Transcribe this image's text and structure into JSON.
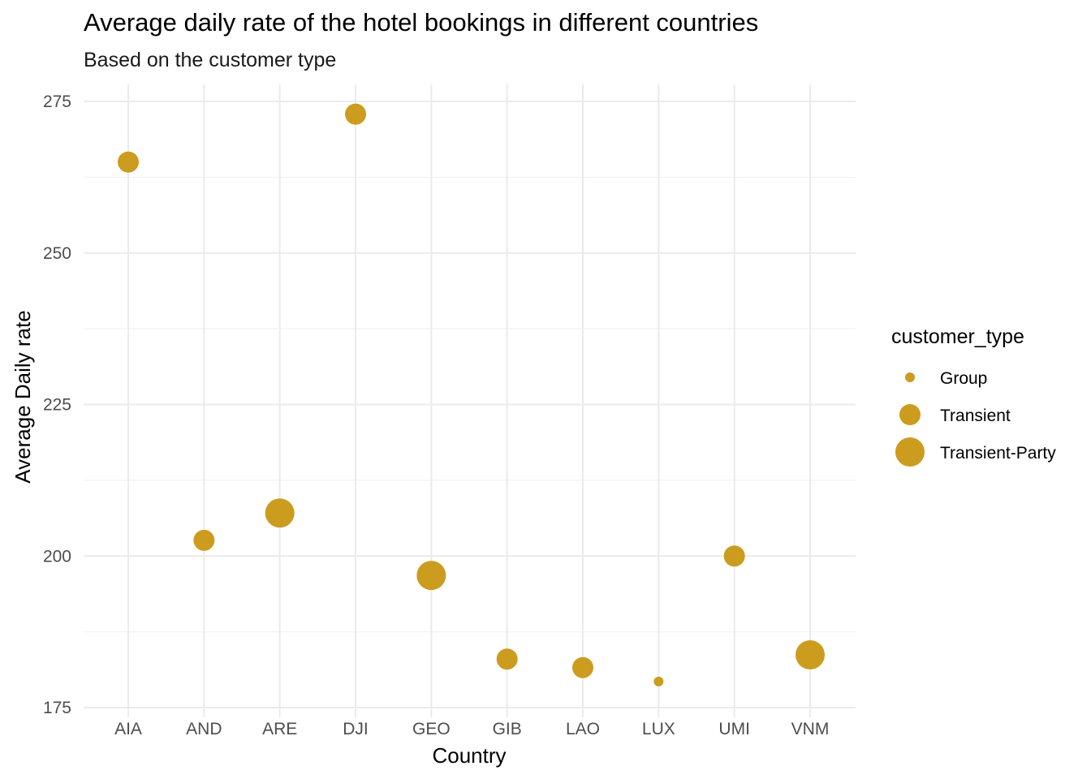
{
  "chart_data": {
    "type": "scatter",
    "title": "Average daily rate of the hotel bookings in different countries",
    "subtitle": "Based on the customer type",
    "xlabel": "Country",
    "ylabel": "Average Daily rate",
    "categories": [
      "AIA",
      "AND",
      "ARE",
      "DJI",
      "GEO",
      "GIB",
      "LAO",
      "LUX",
      "UMI",
      "VNM"
    ],
    "ylim": [
      175,
      277
    ],
    "yticks": [
      175,
      200,
      225,
      250,
      275
    ],
    "grid": true,
    "point_color": "#CC9C1F",
    "legend": {
      "title": "customer_type",
      "position": "right",
      "entries": [
        "Group",
        "Transient",
        "Transient-Party"
      ]
    },
    "points": [
      {
        "x": "AIA",
        "y": 265.0,
        "customer_type": "Transient"
      },
      {
        "x": "AND",
        "y": 202.6,
        "customer_type": "Transient"
      },
      {
        "x": "ARE",
        "y": 207.1,
        "customer_type": "Transient-Party"
      },
      {
        "x": "DJI",
        "y": 272.9,
        "customer_type": "Transient"
      },
      {
        "x": "GEO",
        "y": 196.8,
        "customer_type": "Transient-Party"
      },
      {
        "x": "GIB",
        "y": 183.0,
        "customer_type": "Transient"
      },
      {
        "x": "LAO",
        "y": 181.6,
        "customer_type": "Transient"
      },
      {
        "x": "LUX",
        "y": 179.3,
        "customer_type": "Group"
      },
      {
        "x": "UMI",
        "y": 200.0,
        "customer_type": "Transient"
      },
      {
        "x": "VNM",
        "y": 183.7,
        "customer_type": "Transient-Party"
      }
    ]
  }
}
